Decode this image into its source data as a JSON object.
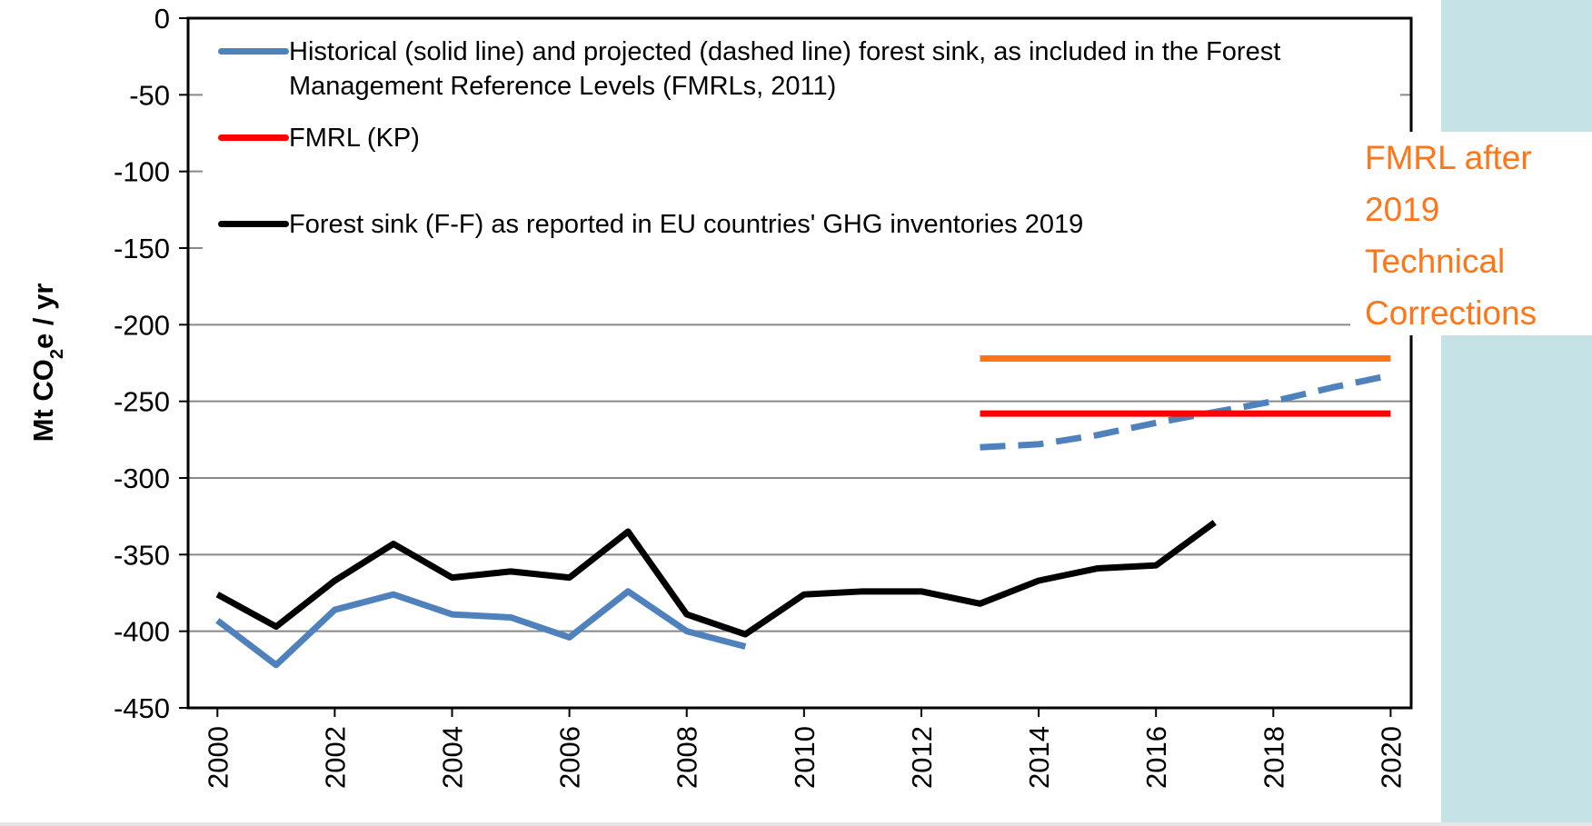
{
  "chart_data": {
    "type": "line",
    "ylabel": {
      "main": "Mt CO",
      "sub": "2",
      "rest": "e / yr"
    },
    "xlim": [
      1999.5,
      2020.35
    ],
    "xticks": [
      2000,
      2002,
      2004,
      2006,
      2008,
      2010,
      2012,
      2014,
      2016,
      2018,
      2020
    ],
    "ylim": [
      -450,
      0
    ],
    "yticks": [
      0,
      -50,
      -100,
      -150,
      -200,
      -250,
      -300,
      -350,
      -400,
      -450
    ],
    "grid": true,
    "series": [
      {
        "name": "Historical (solid line) and projected (dashed line) forest sink, as included in the Forest Management Reference Levels (FMRLs, 2011)",
        "color": "#4f81bd",
        "segments": [
          {
            "dashed": false,
            "x": [
              2000,
              2001,
              2002,
              2003,
              2004,
              2005,
              2006,
              2007,
              2008,
              2009
            ],
            "values": [
              -393,
              -422,
              -386,
              -376,
              -389,
              -391,
              -404,
              -374,
              -400,
              -410
            ]
          },
          {
            "dashed": true,
            "x": [
              2013,
              2014,
              2015,
              2016,
              2017,
              2018,
              2019,
              2020
            ],
            "values": [
              -280,
              -278,
              -272,
              -264,
              -257,
              -250,
              -241,
              -233
            ]
          }
        ]
      },
      {
        "name": "FMRL (KP)",
        "color": "#ff0000",
        "segments": [
          {
            "dashed": false,
            "x": [
              2013,
              2020
            ],
            "values": [
              -258,
              -258
            ]
          }
        ]
      },
      {
        "name": "Forest sink (F-F) as reported in EU countries' GHG inventories 2019",
        "color": "#000000",
        "segments": [
          {
            "dashed": false,
            "x": [
              2000,
              2001,
              2002,
              2003,
              2004,
              2005,
              2006,
              2007,
              2008,
              2009,
              2010,
              2011,
              2012,
              2013,
              2014,
              2015,
              2016,
              2017
            ],
            "values": [
              -376,
              -397,
              -367,
              -343,
              -365,
              -361,
              -365,
              -335,
              -389,
              -402,
              -376,
              -374,
              -374,
              -382,
              -367,
              -359,
              -357,
              -329
            ]
          }
        ]
      }
    ],
    "annotation": {
      "text": "FMRL after 2019 Technical Corrections",
      "color": "#ff7518",
      "x": [
        2013,
        2020
      ],
      "values": [
        -222,
        -222
      ]
    }
  }
}
